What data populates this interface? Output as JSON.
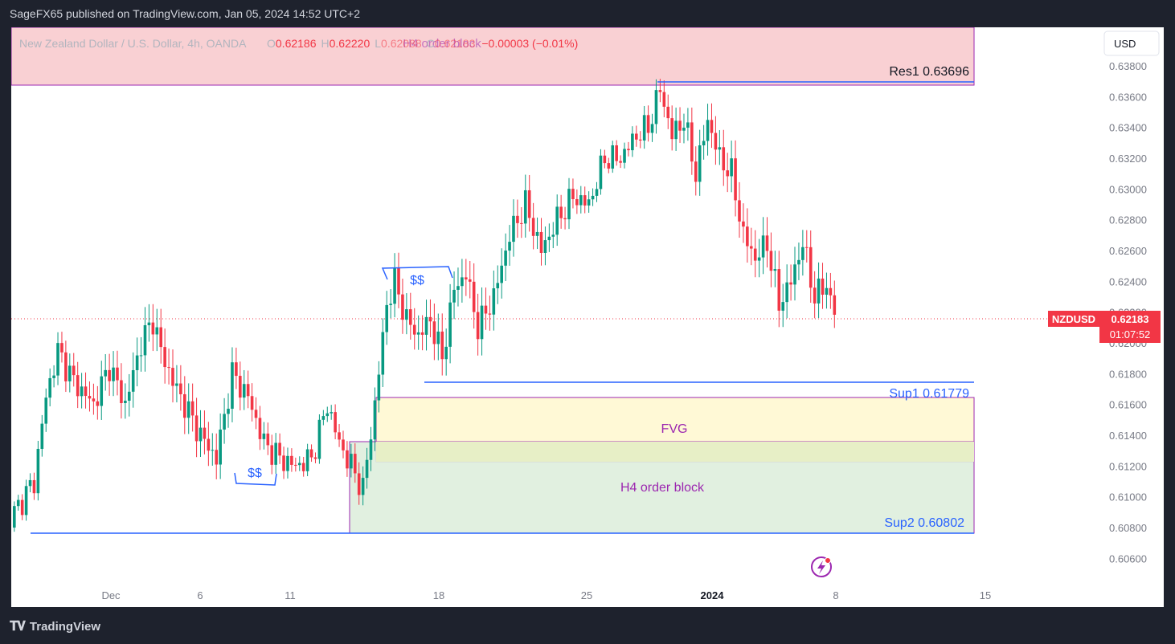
{
  "header": {
    "publisher_line": "SageFX65 published on TradingView.com, Jan 05, 2024 14:52 UTC+2"
  },
  "footer": {
    "brand": "TradingView",
    "logo_icon": "tradingview-logo-icon"
  },
  "legend": {
    "symbol_text": "New Zealand Dollar / U.S. Dollar, 4h, OANDA",
    "o_label": "O",
    "o_value": "0.62186",
    "h_label": "H",
    "h_value": "0.62220",
    "l_label": "L",
    "l_value": "0.62088",
    "c_label": "C",
    "c_value": "0.62183",
    "change": "−0.00003 (−0.01%)"
  },
  "price_axis": {
    "currency": "USD",
    "ticks": [
      "0.63800",
      "0.63600",
      "0.63400",
      "0.63200",
      "0.63000",
      "0.62800",
      "0.62600",
      "0.62400",
      "0.62200",
      "0.62000",
      "0.61800",
      "0.61600",
      "0.61400",
      "0.61200",
      "0.61000",
      "0.60800",
      "0.60600"
    ],
    "ticker": "NZDUSD",
    "last_price": "0.62183",
    "countdown": "01:07:52"
  },
  "time_axis": {
    "ticks": [
      "Dec",
      "6",
      "11",
      "18",
      "25",
      "2024",
      "8",
      "15"
    ]
  },
  "annotations": {
    "top_zone_label": "H4 order block",
    "res1": "Res1 0.63696",
    "sup1": "Sup1 0.61779",
    "sup2": "Sup2 0.60802",
    "fvg": "FVG",
    "ob_label": "H4 order block",
    "liq_high": "$$",
    "liq_low": "$$"
  },
  "colors": {
    "up": "#089981",
    "down": "#f23645",
    "level_line": "#2962ff",
    "zone_border": "#9c27b0",
    "top_zone_fill": "#f7c6c9",
    "fvg_fill": "#fff9c4",
    "ob_fill": "#d7ecd8",
    "text_purple": "#9c27b0",
    "axis_text": "#787b86"
  },
  "chart_data": {
    "type": "candlestick",
    "title": "New Zealand Dollar / U.S. Dollar, 4h, OANDA",
    "ylim": [
      0.605,
      0.639
    ],
    "x_ticks": [
      "Dec",
      "6",
      "11",
      "18",
      "25",
      "2024",
      "8",
      "15"
    ],
    "levels": [
      {
        "label": "Res1",
        "value": 0.63696
      },
      {
        "label": "Sup1",
        "value": 0.61779
      },
      {
        "label": "Sup2",
        "value": 0.60802
      }
    ],
    "zones": [
      {
        "label": "H4 order block",
        "from": 0.637,
        "to": 0.6405
      },
      {
        "label": "FVG",
        "from": 0.6127,
        "to": 0.6167
      },
      {
        "label": "H4 order block",
        "from": 0.608,
        "to": 0.614
      }
    ],
    "ohlc_waypoints": [
      {
        "bar": 0,
        "close": 0.609
      },
      {
        "bar": 5,
        "close": 0.611
      },
      {
        "bar": 8,
        "close": 0.6165
      },
      {
        "bar": 11,
        "close": 0.6195
      },
      {
        "bar": 15,
        "close": 0.6175
      },
      {
        "bar": 20,
        "close": 0.616
      },
      {
        "bar": 24,
        "close": 0.6185
      },
      {
        "bar": 28,
        "close": 0.616
      },
      {
        "bar": 32,
        "close": 0.62
      },
      {
        "bar": 35,
        "close": 0.6215
      },
      {
        "bar": 37,
        "close": 0.6195
      },
      {
        "bar": 40,
        "close": 0.6175
      },
      {
        "bar": 44,
        "close": 0.6155
      },
      {
        "bar": 47,
        "close": 0.614
      },
      {
        "bar": 51,
        "close": 0.6125
      },
      {
        "bar": 55,
        "close": 0.618
      },
      {
        "bar": 59,
        "close": 0.6165
      },
      {
        "bar": 63,
        "close": 0.6135
      },
      {
        "bar": 67,
        "close": 0.6125
      },
      {
        "bar": 71,
        "close": 0.612
      },
      {
        "bar": 75,
        "close": 0.6125
      },
      {
        "bar": 79,
        "close": 0.616
      },
      {
        "bar": 82,
        "close": 0.6135
      },
      {
        "bar": 85,
        "close": 0.612
      },
      {
        "bar": 88,
        "close": 0.6105
      },
      {
        "bar": 91,
        "close": 0.616
      },
      {
        "bar": 94,
        "close": 0.6225
      },
      {
        "bar": 96,
        "close": 0.624
      },
      {
        "bar": 99,
        "close": 0.6215
      },
      {
        "bar": 102,
        "close": 0.6205
      },
      {
        "bar": 105,
        "close": 0.6215
      },
      {
        "bar": 108,
        "close": 0.619
      },
      {
        "bar": 111,
        "close": 0.6235
      },
      {
        "bar": 114,
        "close": 0.6245
      },
      {
        "bar": 117,
        "close": 0.621
      },
      {
        "bar": 121,
        "close": 0.623
      },
      {
        "bar": 125,
        "close": 0.627
      },
      {
        "bar": 129,
        "close": 0.629
      },
      {
        "bar": 133,
        "close": 0.626
      },
      {
        "bar": 137,
        "close": 0.628
      },
      {
        "bar": 141,
        "close": 0.6295
      },
      {
        "bar": 145,
        "close": 0.629
      },
      {
        "bar": 149,
        "close": 0.632
      },
      {
        "bar": 153,
        "close": 0.632
      },
      {
        "bar": 157,
        "close": 0.6335
      },
      {
        "bar": 160,
        "close": 0.634
      },
      {
        "bar": 163,
        "close": 0.6365
      },
      {
        "bar": 166,
        "close": 0.6335
      },
      {
        "bar": 169,
        "close": 0.6345
      },
      {
        "bar": 172,
        "close": 0.631
      },
      {
        "bar": 175,
        "close": 0.6345
      },
      {
        "bar": 178,
        "close": 0.632
      },
      {
        "bar": 181,
        "close": 0.631
      },
      {
        "bar": 184,
        "close": 0.627
      },
      {
        "bar": 187,
        "close": 0.6255
      },
      {
        "bar": 190,
        "close": 0.6265
      },
      {
        "bar": 193,
        "close": 0.6225
      },
      {
        "bar": 196,
        "close": 0.624
      },
      {
        "bar": 199,
        "close": 0.6265
      },
      {
        "bar": 202,
        "close": 0.623
      },
      {
        "bar": 205,
        "close": 0.6238
      },
      {
        "bar": 207,
        "close": 0.6218
      }
    ]
  }
}
